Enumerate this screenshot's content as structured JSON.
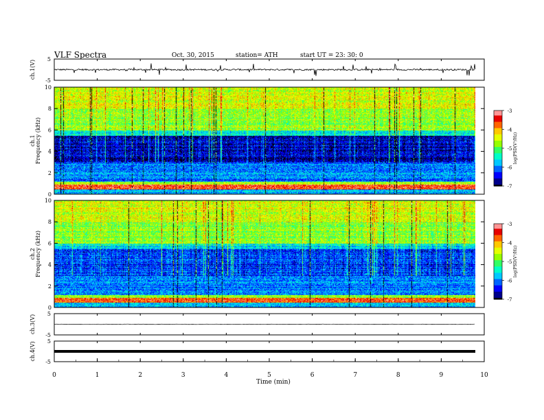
{
  "header": {
    "title": "VLF  Spectra",
    "date": "Oct. 30, 2015",
    "station": "station= ATH",
    "start": "start  UT  =   23: 30: 0"
  },
  "colors": {
    "palette": [
      "#000000",
      "#00008b",
      "#0000ff",
      "#0064ff",
      "#00c8ff",
      "#00ffc8",
      "#32ff64",
      "#96ff00",
      "#e6ff00",
      "#ffc800",
      "#ff6400",
      "#e60000",
      "#ff9696",
      "#ffffff"
    ]
  },
  "chart_data": [
    {
      "type": "line",
      "panel": "ch1-waveform",
      "ylabel": "ch.1(V)",
      "ylim": [
        -5,
        5
      ],
      "yticks": [
        "5",
        "-5"
      ],
      "baseline": 0
    },
    {
      "type": "heatmap",
      "panel": "ch1-spectrogram",
      "ylabel": "Frequency  (kHz)",
      "ylabel2": "ch.1",
      "ylim": [
        0,
        10
      ],
      "yticks": [
        "0",
        "2",
        "4",
        "6",
        "8",
        "10"
      ],
      "xlim": [
        0,
        9.8
      ],
      "colorbar": {
        "label": "log(PSD(V²/Hz)",
        "range": [
          -7,
          -3
        ],
        "ticks": [
          "-3",
          "-4",
          "-5",
          "-6",
          "-7"
        ]
      }
    },
    {
      "type": "heatmap",
      "panel": "ch2-spectrogram",
      "ylabel": "Frequency  (kHz)",
      "ylabel2": "ch.2",
      "ylim": [
        0,
        10
      ],
      "yticks": [
        "0",
        "2",
        "4",
        "6",
        "8",
        "10"
      ],
      "xlim": [
        0,
        9.8
      ],
      "colorbar": {
        "label": "log(PSD(V²/Hz)",
        "range": [
          -7,
          -3
        ],
        "ticks": [
          "-3",
          "-4",
          "-5",
          "-6",
          "-7"
        ]
      }
    },
    {
      "type": "line",
      "panel": "ch3-waveform",
      "ylabel": "ch.3(V)",
      "ylim": [
        -5,
        5
      ],
      "yticks": [
        "5",
        "-5"
      ],
      "baseline": 0
    },
    {
      "type": "line",
      "panel": "ch4-waveform",
      "ylabel": "ch.4(V)",
      "ylim": [
        -5,
        5
      ],
      "yticks": [
        "5",
        "-5"
      ],
      "baseline": 0
    }
  ],
  "xaxis": {
    "label": "Time  (min)",
    "ticks": [
      "0",
      "1",
      "2",
      "3",
      "4",
      "5",
      "6",
      "7",
      "8",
      "9",
      "10"
    ],
    "xlim": [
      0,
      10
    ]
  }
}
